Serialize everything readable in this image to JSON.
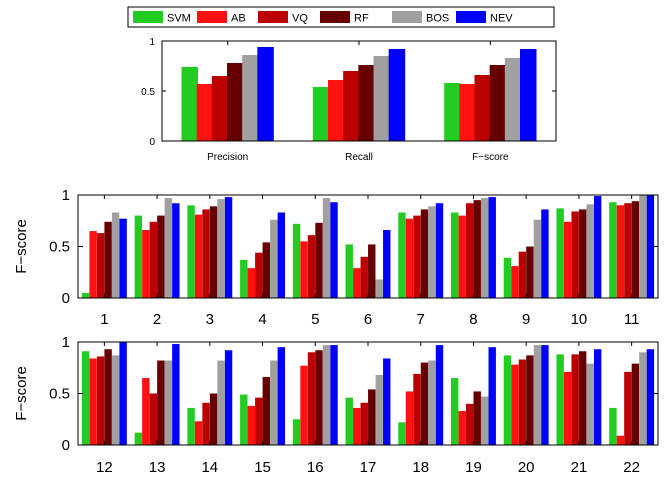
{
  "colors": {
    "SVM": "#22cc22",
    "AB": "#ff1111",
    "VQ": "#bb0000",
    "RF": "#660000",
    "BOS": "#a0a0a0",
    "NEV": "#0000ff"
  },
  "chart_data": [
    {
      "type": "bar",
      "title": "",
      "xlabel": "",
      "ylabel": "",
      "ylim": [
        0,
        1
      ],
      "yticks": [
        "0",
        "0.5",
        "1"
      ],
      "categories": [
        "Precision",
        "Recall",
        "F−score"
      ],
      "legend": {
        "placement": "top-center",
        "entries": [
          "SVM",
          "AB",
          "VQ",
          "RF",
          "BOS",
          "NEV"
        ]
      },
      "series": [
        {
          "name": "SVM",
          "values": [
            0.74,
            0.54,
            0.58
          ]
        },
        {
          "name": "AB",
          "values": [
            0.57,
            0.61,
            0.57
          ]
        },
        {
          "name": "VQ",
          "values": [
            0.65,
            0.7,
            0.66
          ]
        },
        {
          "name": "RF",
          "values": [
            0.78,
            0.76,
            0.76
          ]
        },
        {
          "name": "BOS",
          "values": [
            0.86,
            0.85,
            0.83
          ]
        },
        {
          "name": "NEV",
          "values": [
            0.94,
            0.92,
            0.92
          ]
        }
      ]
    },
    {
      "type": "bar",
      "title": "",
      "xlabel": "",
      "ylabel": "F−score",
      "ylim": [
        0,
        1
      ],
      "yticks": [
        "0",
        "0.5",
        "1"
      ],
      "categories": [
        "1",
        "2",
        "3",
        "4",
        "5",
        "6",
        "7",
        "8",
        "9",
        "10",
        "11"
      ],
      "series": [
        {
          "name": "SVM",
          "values": [
            0.05,
            0.8,
            0.9,
            0.37,
            0.72,
            0.52,
            0.83,
            0.83,
            0.39,
            0.87,
            0.93
          ]
        },
        {
          "name": "AB",
          "values": [
            0.65,
            0.66,
            0.81,
            0.29,
            0.55,
            0.29,
            0.77,
            0.8,
            0.31,
            0.74,
            0.9
          ]
        },
        {
          "name": "VQ",
          "values": [
            0.63,
            0.74,
            0.86,
            0.44,
            0.61,
            0.4,
            0.8,
            0.92,
            0.45,
            0.84,
            0.92
          ]
        },
        {
          "name": "RF",
          "values": [
            0.74,
            0.8,
            0.89,
            0.54,
            0.73,
            0.52,
            0.86,
            0.95,
            0.5,
            0.86,
            0.94
          ]
        },
        {
          "name": "BOS",
          "values": [
            0.83,
            0.97,
            0.96,
            0.76,
            0.97,
            0.18,
            0.89,
            0.97,
            0.76,
            0.91,
            1.0
          ]
        },
        {
          "name": "NEV",
          "values": [
            0.77,
            0.92,
            0.98,
            0.83,
            0.93,
            0.66,
            0.92,
            0.98,
            0.86,
            0.99,
            1.0
          ]
        }
      ]
    },
    {
      "type": "bar",
      "title": "",
      "xlabel": "",
      "ylabel": "F−score",
      "ylim": [
        0,
        1
      ],
      "yticks": [
        "0",
        "0.5",
        "1"
      ],
      "categories": [
        "12",
        "13",
        "14",
        "15",
        "16",
        "17",
        "18",
        "19",
        "20",
        "21",
        "22"
      ],
      "series": [
        {
          "name": "SVM",
          "values": [
            0.91,
            0.12,
            0.36,
            0.49,
            0.25,
            0.46,
            0.22,
            0.65,
            0.87,
            0.88,
            0.36
          ]
        },
        {
          "name": "AB",
          "values": [
            0.84,
            0.65,
            0.23,
            0.38,
            0.77,
            0.36,
            0.52,
            0.33,
            0.78,
            0.71,
            0.09
          ]
        },
        {
          "name": "VQ",
          "values": [
            0.86,
            0.5,
            0.41,
            0.46,
            0.9,
            0.41,
            0.69,
            0.4,
            0.83,
            0.88,
            0.71
          ]
        },
        {
          "name": "RF",
          "values": [
            0.93,
            0.82,
            0.5,
            0.66,
            0.92,
            0.54,
            0.8,
            0.52,
            0.87,
            0.91,
            0.79
          ]
        },
        {
          "name": "BOS",
          "values": [
            0.87,
            0.82,
            0.82,
            0.82,
            0.97,
            0.68,
            0.82,
            0.47,
            0.97,
            0.79,
            0.9
          ]
        },
        {
          "name": "NEV",
          "values": [
            1.0,
            0.98,
            0.92,
            0.95,
            0.97,
            0.84,
            0.97,
            0.95,
            0.97,
            0.93,
            0.93
          ]
        }
      ]
    }
  ]
}
